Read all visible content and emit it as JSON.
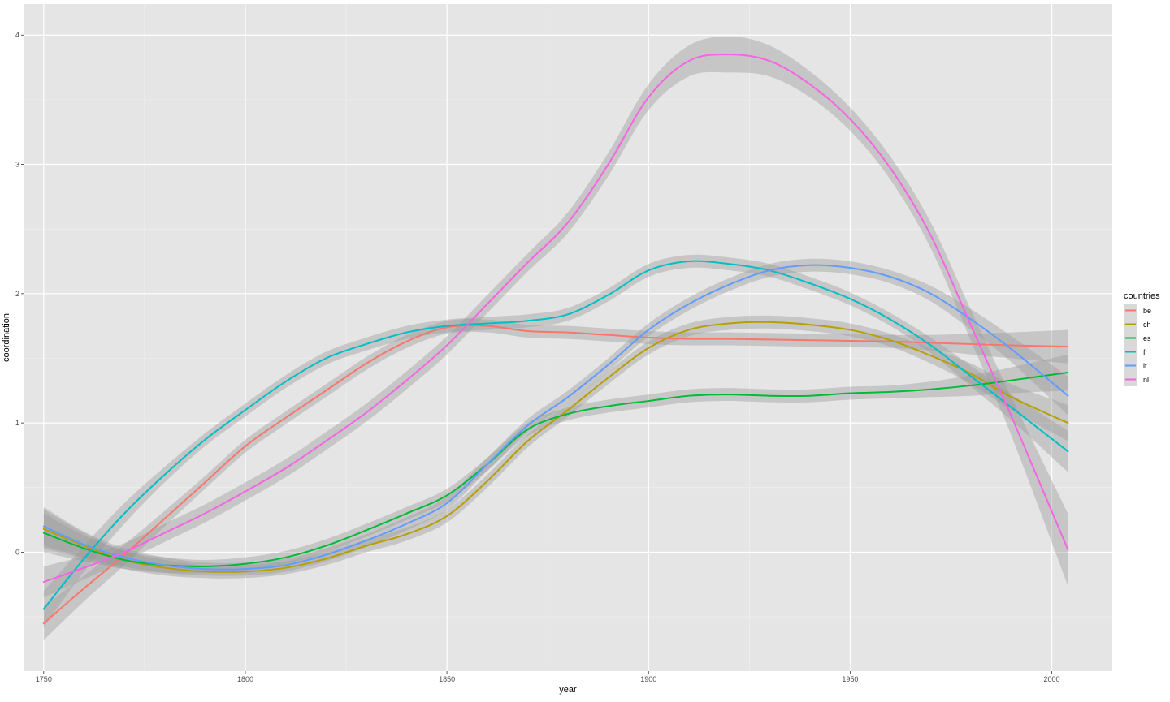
{
  "chart_data": {
    "type": "line",
    "xlabel": "year",
    "ylabel": "coordination",
    "xlim": [
      1745,
      2015
    ],
    "ylim": [
      -0.92,
      4.24
    ],
    "x_ticks": [
      1750,
      1800,
      1850,
      1900,
      1950,
      2000
    ],
    "x_tick_labels": [
      "1750",
      "1800",
      "1850",
      "1900",
      "1950",
      "2000"
    ],
    "y_ticks": [
      0,
      1,
      2,
      3,
      4
    ],
    "y_tick_labels": [
      "0",
      "1",
      "2",
      "3",
      "4"
    ],
    "grid": true,
    "confidence_band": true,
    "legend": {
      "title": "countries",
      "position": "right"
    },
    "series": [
      {
        "name": "be",
        "color": "#F8766D",
        "x": [
          1750,
          1760,
          1770,
          1780,
          1790,
          1800,
          1810,
          1820,
          1830,
          1840,
          1850,
          1860,
          1870,
          1880,
          1890,
          1900,
          1910,
          1920,
          1930,
          1940,
          1950,
          1960,
          1970,
          1980,
          1990,
          2004
        ],
        "y": [
          -0.55,
          -0.28,
          -0.02,
          0.26,
          0.54,
          0.82,
          1.04,
          1.25,
          1.46,
          1.63,
          1.74,
          1.75,
          1.71,
          1.7,
          1.68,
          1.66,
          1.65,
          1.65,
          1.645,
          1.64,
          1.635,
          1.63,
          1.62,
          1.61,
          1.6,
          1.59
        ],
        "band": [
          0.13,
          0.1,
          0.08,
          0.06,
          0.05,
          0.05,
          0.05,
          0.05,
          0.05,
          0.05,
          0.05,
          0.05,
          0.05,
          0.05,
          0.05,
          0.05,
          0.05,
          0.05,
          0.05,
          0.05,
          0.05,
          0.05,
          0.06,
          0.08,
          0.1,
          0.13
        ]
      },
      {
        "name": "ch",
        "color": "#B79F00",
        "x": [
          1750,
          1760,
          1770,
          1780,
          1790,
          1800,
          1810,
          1820,
          1830,
          1840,
          1850,
          1860,
          1870,
          1880,
          1890,
          1900,
          1910,
          1920,
          1930,
          1940,
          1950,
          1960,
          1970,
          1980,
          1990,
          2004
        ],
        "y": [
          0.18,
          0.05,
          -0.06,
          -0.12,
          -0.15,
          -0.15,
          -0.12,
          -0.05,
          0.05,
          0.14,
          0.28,
          0.55,
          0.86,
          1.1,
          1.35,
          1.58,
          1.72,
          1.77,
          1.78,
          1.76,
          1.72,
          1.64,
          1.52,
          1.38,
          1.2,
          1.0
        ],
        "band": [
          0.15,
          0.1,
          0.07,
          0.06,
          0.05,
          0.05,
          0.05,
          0.05,
          0.05,
          0.05,
          0.05,
          0.05,
          0.05,
          0.05,
          0.05,
          0.05,
          0.05,
          0.05,
          0.05,
          0.05,
          0.05,
          0.05,
          0.06,
          0.08,
          0.1,
          0.14
        ]
      },
      {
        "name": "es",
        "color": "#00BA38",
        "x": [
          1750,
          1760,
          1770,
          1780,
          1790,
          1800,
          1810,
          1820,
          1830,
          1840,
          1850,
          1860,
          1870,
          1880,
          1890,
          1900,
          1910,
          1920,
          1930,
          1940,
          1950,
          1960,
          1970,
          1980,
          1990,
          2004
        ],
        "y": [
          0.15,
          0.03,
          -0.06,
          -0.1,
          -0.11,
          -0.09,
          -0.04,
          0.05,
          0.17,
          0.3,
          0.44,
          0.68,
          0.95,
          1.07,
          1.13,
          1.17,
          1.21,
          1.22,
          1.21,
          1.21,
          1.23,
          1.24,
          1.26,
          1.29,
          1.33,
          1.39
        ],
        "band": [
          0.15,
          0.1,
          0.07,
          0.06,
          0.05,
          0.05,
          0.05,
          0.05,
          0.05,
          0.05,
          0.05,
          0.05,
          0.05,
          0.05,
          0.05,
          0.05,
          0.05,
          0.05,
          0.05,
          0.05,
          0.05,
          0.05,
          0.06,
          0.08,
          0.1,
          0.14
        ]
      },
      {
        "name": "fr",
        "color": "#00BFC4",
        "x": [
          1750,
          1760,
          1770,
          1780,
          1790,
          1800,
          1810,
          1820,
          1830,
          1840,
          1850,
          1860,
          1870,
          1880,
          1890,
          1900,
          1910,
          1920,
          1930,
          1940,
          1950,
          1960,
          1970,
          1980,
          1990,
          2004
        ],
        "y": [
          -0.44,
          -0.05,
          0.3,
          0.6,
          0.87,
          1.1,
          1.32,
          1.5,
          1.61,
          1.7,
          1.75,
          1.77,
          1.79,
          1.84,
          1.99,
          2.18,
          2.25,
          2.23,
          2.18,
          2.08,
          1.96,
          1.8,
          1.6,
          1.36,
          1.12,
          0.78
        ],
        "band": [
          0.14,
          0.1,
          0.08,
          0.06,
          0.05,
          0.05,
          0.05,
          0.05,
          0.05,
          0.05,
          0.05,
          0.05,
          0.05,
          0.05,
          0.05,
          0.05,
          0.05,
          0.05,
          0.05,
          0.05,
          0.05,
          0.05,
          0.06,
          0.08,
          0.1,
          0.16
        ]
      },
      {
        "name": "it",
        "color": "#619CFF",
        "x": [
          1750,
          1760,
          1770,
          1780,
          1790,
          1800,
          1810,
          1820,
          1830,
          1840,
          1850,
          1860,
          1870,
          1880,
          1890,
          1900,
          1910,
          1920,
          1930,
          1940,
          1950,
          1960,
          1970,
          1980,
          1990,
          2004
        ],
        "y": [
          0.2,
          0.06,
          -0.04,
          -0.1,
          -0.13,
          -0.13,
          -0.1,
          -0.02,
          0.09,
          0.22,
          0.38,
          0.68,
          0.98,
          1.2,
          1.45,
          1.72,
          1.92,
          2.07,
          2.18,
          2.22,
          2.2,
          2.13,
          2.0,
          1.8,
          1.57,
          1.21
        ],
        "band": [
          0.15,
          0.1,
          0.07,
          0.06,
          0.05,
          0.05,
          0.05,
          0.05,
          0.05,
          0.05,
          0.05,
          0.05,
          0.05,
          0.05,
          0.05,
          0.05,
          0.05,
          0.05,
          0.05,
          0.05,
          0.05,
          0.05,
          0.06,
          0.08,
          0.1,
          0.15
        ]
      },
      {
        "name": "nl",
        "color": "#F564E3",
        "x": [
          1750,
          1760,
          1770,
          1780,
          1790,
          1800,
          1810,
          1820,
          1830,
          1840,
          1850,
          1860,
          1870,
          1880,
          1890,
          1900,
          1910,
          1920,
          1930,
          1940,
          1950,
          1960,
          1970,
          1980,
          1990,
          2004
        ],
        "y": [
          -0.23,
          -0.12,
          0.0,
          0.15,
          0.3,
          0.47,
          0.65,
          0.86,
          1.08,
          1.33,
          1.6,
          1.92,
          2.24,
          2.55,
          3.0,
          3.52,
          3.8,
          3.85,
          3.8,
          3.62,
          3.35,
          2.97,
          2.45,
          1.75,
          1.05,
          0.02
        ],
        "band": [
          0.12,
          0.09,
          0.07,
          0.07,
          0.07,
          0.07,
          0.07,
          0.07,
          0.07,
          0.07,
          0.07,
          0.07,
          0.07,
          0.08,
          0.09,
          0.1,
          0.12,
          0.14,
          0.12,
          0.1,
          0.09,
          0.09,
          0.1,
          0.12,
          0.15,
          0.28
        ]
      }
    ]
  }
}
